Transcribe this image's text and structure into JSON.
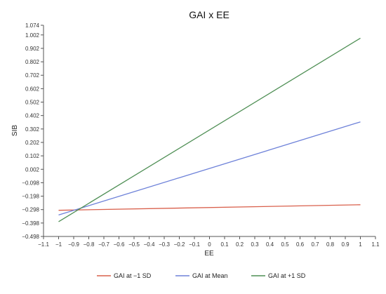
{
  "chart_data": {
    "type": "line",
    "title": "GAI x EE",
    "xlabel": "EE",
    "ylabel": "SIB",
    "xlim": [
      -1.1,
      1.1
    ],
    "ylim": [
      -0.498,
      1.074
    ],
    "x_ticks": [
      "-1.1",
      "-1",
      "-0.9",
      "-0.8",
      "-0.7",
      "-0.6",
      "-0.5",
      "-0.4",
      "-0.3",
      "-0.2",
      "-0.1",
      "0",
      "0.1",
      "0.2",
      "0.3",
      "0.4",
      "0.5",
      "0.6",
      "0.7",
      "0.8",
      "0.9",
      "1",
      "1.1"
    ],
    "y_ticks": [
      "1.074",
      "1.002",
      "0.902",
      "0.802",
      "0.702",
      "0.602",
      "0.502",
      "0.402",
      "0.302",
      "0.202",
      "0.102",
      "0.002",
      "-0.098",
      "-0.198",
      "-0.298",
      "-0.398",
      "-0.498"
    ],
    "grid": false,
    "legend_position": "bottom",
    "series": [
      {
        "name": "GAI at −1 SD",
        "color": "#d9604c",
        "x": [
          -1,
          1
        ],
        "y": [
          -0.303,
          -0.262
        ]
      },
      {
        "name": "GAI at Mean",
        "color": "#6e82d9",
        "x": [
          -1,
          1
        ],
        "y": [
          -0.338,
          0.355
        ]
      },
      {
        "name": "GAI at +1 SD",
        "color": "#4f8f55",
        "x": [
          -1,
          1
        ],
        "y": [
          -0.388,
          0.978
        ]
      }
    ]
  }
}
